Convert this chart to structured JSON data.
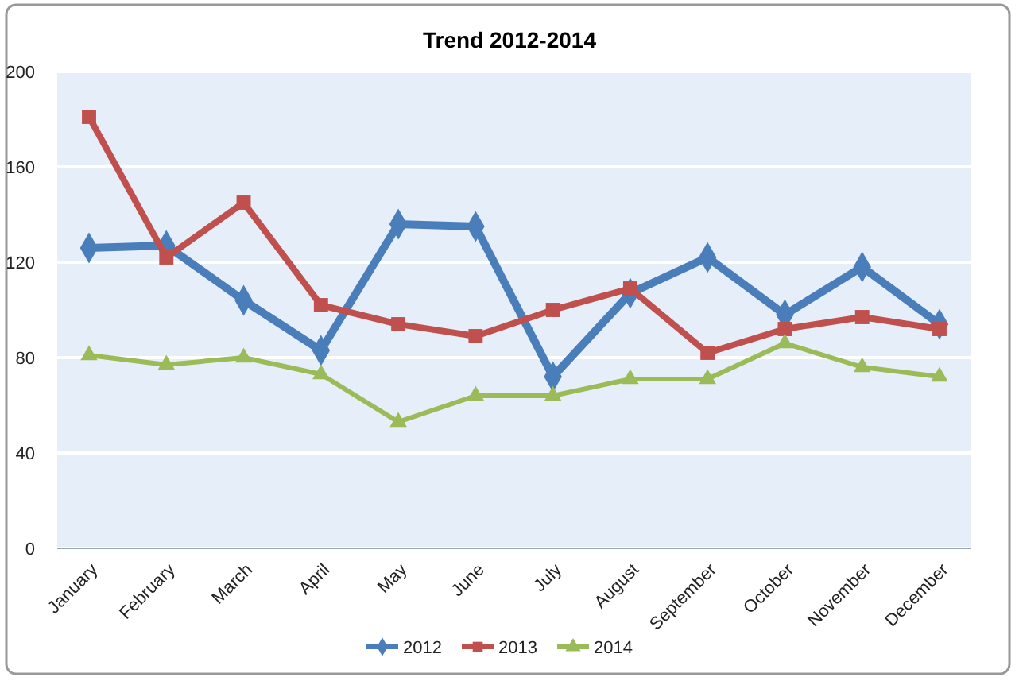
{
  "chart_data": {
    "type": "line",
    "title": "Trend 2012-2014",
    "categories": [
      "January",
      "February",
      "March",
      "April",
      "May",
      "June",
      "July",
      "August",
      "September",
      "October",
      "November",
      "December"
    ],
    "series": [
      {
        "name": "2012",
        "color": "#4a7ebb",
        "marker": "diamond",
        "values": [
          126,
          127,
          104,
          83,
          136,
          135,
          72,
          107,
          122,
          98,
          118,
          94
        ]
      },
      {
        "name": "2013",
        "color": "#c0504d",
        "marker": "square",
        "values": [
          181,
          122,
          145,
          102,
          94,
          89,
          100,
          109,
          82,
          92,
          97,
          92
        ]
      },
      {
        "name": "2014",
        "color": "#9bbb59",
        "marker": "triangle",
        "values": [
          81,
          77,
          80,
          73,
          53,
          64,
          64,
          71,
          71,
          86,
          76,
          72
        ]
      }
    ],
    "ylim": [
      0,
      200
    ],
    "yticks": [
      0,
      40,
      80,
      120,
      160,
      200
    ],
    "grid": "y",
    "legend": "bottom"
  }
}
